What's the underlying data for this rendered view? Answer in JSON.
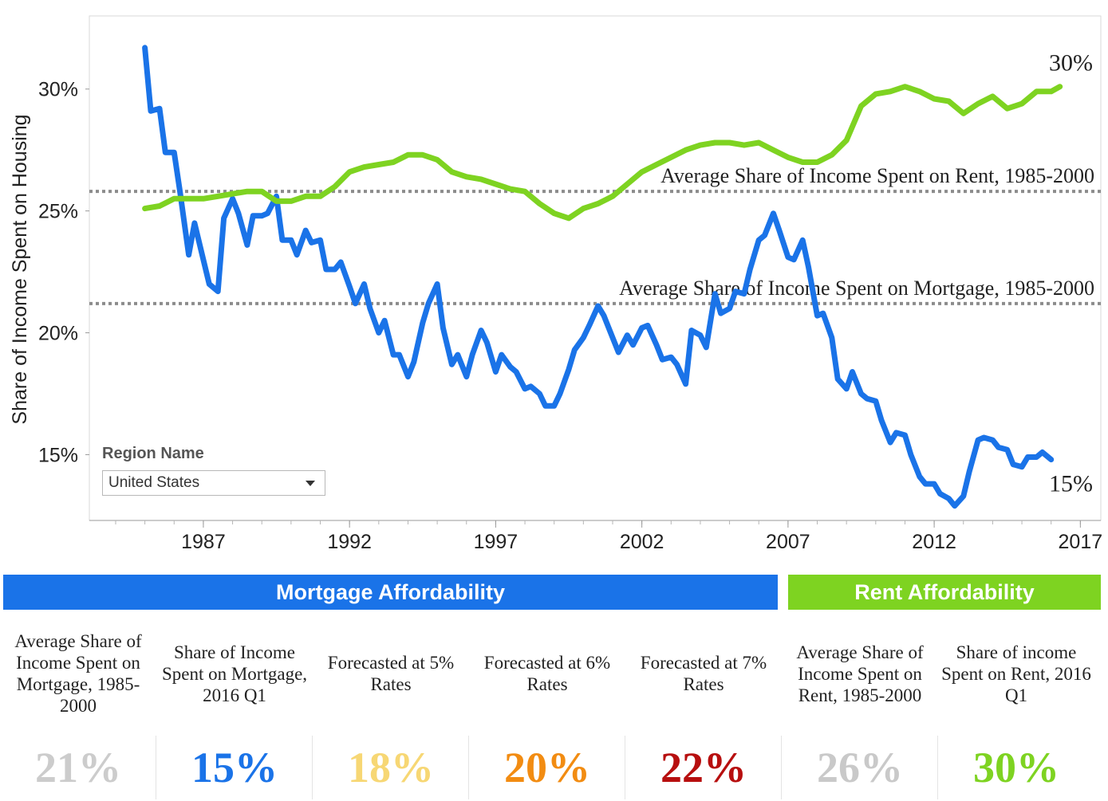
{
  "chart_data": {
    "type": "line",
    "ylabel": "Share of Income Spent on Housing",
    "xlabel": "",
    "xlim": [
      1983.1,
      2017.7
    ],
    "ylim": [
      12.3,
      33.0
    ],
    "x_ticks": [
      {
        "value": 1987,
        "label": "1987"
      },
      {
        "value": 1992,
        "label": "1992"
      },
      {
        "value": 1997,
        "label": "1997"
      },
      {
        "value": 2002,
        "label": "2002"
      },
      {
        "value": 2007,
        "label": "2007"
      },
      {
        "value": 2012,
        "label": "2012"
      },
      {
        "value": 2017,
        "label": "2017"
      }
    ],
    "y_ticks": [
      {
        "value": 15,
        "label": "15%"
      },
      {
        "value": 20,
        "label": "20%"
      },
      {
        "value": 25,
        "label": "25%"
      },
      {
        "value": 30,
        "label": "30%"
      }
    ],
    "reference_lines": [
      {
        "value": 25.8,
        "label": "Average Share of Income Spent on Rent, 1985-2000"
      },
      {
        "value": 21.2,
        "label": "Average Share of Income Spent on Mortgage, 1985-2000"
      }
    ],
    "series": [
      {
        "name": "Mortgage",
        "color": "#1a73e8",
        "end_label": "15%",
        "points": [
          [
            1985.0,
            31.7
          ],
          [
            1985.2,
            29.1
          ],
          [
            1985.5,
            29.2
          ],
          [
            1985.7,
            27.4
          ],
          [
            1986.0,
            27.4
          ],
          [
            1986.2,
            25.8
          ],
          [
            1986.5,
            23.2
          ],
          [
            1986.7,
            24.5
          ],
          [
            1987.0,
            23.0
          ],
          [
            1987.2,
            22.0
          ],
          [
            1987.5,
            21.7
          ],
          [
            1987.7,
            24.7
          ],
          [
            1988.0,
            25.5
          ],
          [
            1988.2,
            24.9
          ],
          [
            1988.5,
            23.6
          ],
          [
            1988.7,
            24.8
          ],
          [
            1989.0,
            24.8
          ],
          [
            1989.2,
            24.9
          ],
          [
            1989.5,
            25.6
          ],
          [
            1989.7,
            23.8
          ],
          [
            1990.0,
            23.8
          ],
          [
            1990.2,
            23.2
          ],
          [
            1990.5,
            24.2
          ],
          [
            1990.7,
            23.7
          ],
          [
            1991.0,
            23.8
          ],
          [
            1991.2,
            22.6
          ],
          [
            1991.5,
            22.6
          ],
          [
            1991.7,
            22.9
          ],
          [
            1992.0,
            21.9
          ],
          [
            1992.2,
            21.2
          ],
          [
            1992.5,
            22.0
          ],
          [
            1992.7,
            21.0
          ],
          [
            1993.0,
            20.0
          ],
          [
            1993.2,
            20.5
          ],
          [
            1993.5,
            19.1
          ],
          [
            1993.7,
            19.1
          ],
          [
            1994.0,
            18.2
          ],
          [
            1994.2,
            18.8
          ],
          [
            1994.5,
            20.4
          ],
          [
            1994.7,
            21.2
          ],
          [
            1995.0,
            22.0
          ],
          [
            1995.2,
            20.2
          ],
          [
            1995.5,
            18.7
          ],
          [
            1995.7,
            19.1
          ],
          [
            1996.0,
            18.2
          ],
          [
            1996.2,
            19.1
          ],
          [
            1996.5,
            20.1
          ],
          [
            1996.7,
            19.6
          ],
          [
            1997.0,
            18.4
          ],
          [
            1997.2,
            19.1
          ],
          [
            1997.5,
            18.6
          ],
          [
            1997.7,
            18.4
          ],
          [
            1998.0,
            17.7
          ],
          [
            1998.2,
            17.8
          ],
          [
            1998.5,
            17.5
          ],
          [
            1998.7,
            17.0
          ],
          [
            1999.0,
            17.0
          ],
          [
            1999.2,
            17.5
          ],
          [
            1999.5,
            18.5
          ],
          [
            1999.7,
            19.3
          ],
          [
            2000.0,
            19.8
          ],
          [
            2000.2,
            20.3
          ],
          [
            2000.5,
            21.1
          ],
          [
            2000.7,
            20.7
          ],
          [
            2001.0,
            19.8
          ],
          [
            2001.2,
            19.2
          ],
          [
            2001.5,
            19.9
          ],
          [
            2001.7,
            19.5
          ],
          [
            2002.0,
            20.2
          ],
          [
            2002.2,
            20.3
          ],
          [
            2002.5,
            19.5
          ],
          [
            2002.7,
            18.9
          ],
          [
            2003.0,
            19.0
          ],
          [
            2003.2,
            18.7
          ],
          [
            2003.5,
            17.9
          ],
          [
            2003.7,
            20.1
          ],
          [
            2004.0,
            19.9
          ],
          [
            2004.2,
            19.4
          ],
          [
            2004.5,
            21.6
          ],
          [
            2004.7,
            20.8
          ],
          [
            2005.0,
            21.0
          ],
          [
            2005.2,
            21.7
          ],
          [
            2005.5,
            21.6
          ],
          [
            2005.7,
            22.6
          ],
          [
            2006.0,
            23.8
          ],
          [
            2006.2,
            24.0
          ],
          [
            2006.5,
            24.9
          ],
          [
            2006.7,
            24.2
          ],
          [
            2007.0,
            23.1
          ],
          [
            2007.2,
            23.0
          ],
          [
            2007.5,
            23.8
          ],
          [
            2007.7,
            22.7
          ],
          [
            2008.0,
            20.7
          ],
          [
            2008.2,
            20.8
          ],
          [
            2008.5,
            19.8
          ],
          [
            2008.7,
            18.1
          ],
          [
            2009.0,
            17.7
          ],
          [
            2009.2,
            18.4
          ],
          [
            2009.5,
            17.5
          ],
          [
            2009.7,
            17.3
          ],
          [
            2010.0,
            17.2
          ],
          [
            2010.2,
            16.4
          ],
          [
            2010.5,
            15.5
          ],
          [
            2010.7,
            15.9
          ],
          [
            2011.0,
            15.8
          ],
          [
            2011.2,
            15.0
          ],
          [
            2011.5,
            14.1
          ],
          [
            2011.7,
            13.8
          ],
          [
            2012.0,
            13.8
          ],
          [
            2012.2,
            13.4
          ],
          [
            2012.5,
            13.2
          ],
          [
            2012.7,
            12.9
          ],
          [
            2013.0,
            13.3
          ],
          [
            2013.2,
            14.3
          ],
          [
            2013.5,
            15.6
          ],
          [
            2013.7,
            15.7
          ],
          [
            2014.0,
            15.6
          ],
          [
            2014.2,
            15.3
          ],
          [
            2014.5,
            15.2
          ],
          [
            2014.7,
            14.6
          ],
          [
            2015.0,
            14.5
          ],
          [
            2015.2,
            14.9
          ],
          [
            2015.5,
            14.9
          ],
          [
            2015.7,
            15.1
          ],
          [
            2016.0,
            14.8
          ]
        ]
      },
      {
        "name": "Rent",
        "color": "#7ed321",
        "end_label": "30%",
        "points": [
          [
            1985.0,
            25.1
          ],
          [
            1985.5,
            25.2
          ],
          [
            1986.0,
            25.5
          ],
          [
            1986.5,
            25.5
          ],
          [
            1987.0,
            25.5
          ],
          [
            1987.5,
            25.6
          ],
          [
            1988.0,
            25.7
          ],
          [
            1988.5,
            25.8
          ],
          [
            1989.0,
            25.8
          ],
          [
            1989.5,
            25.4
          ],
          [
            1990.0,
            25.4
          ],
          [
            1990.5,
            25.6
          ],
          [
            1991.0,
            25.6
          ],
          [
            1991.5,
            26.0
          ],
          [
            1992.0,
            26.6
          ],
          [
            1992.5,
            26.8
          ],
          [
            1993.0,
            26.9
          ],
          [
            1993.5,
            27.0
          ],
          [
            1994.0,
            27.3
          ],
          [
            1994.5,
            27.3
          ],
          [
            1995.0,
            27.1
          ],
          [
            1995.5,
            26.6
          ],
          [
            1996.0,
            26.4
          ],
          [
            1996.5,
            26.3
          ],
          [
            1997.0,
            26.1
          ],
          [
            1997.5,
            25.9
          ],
          [
            1998.0,
            25.8
          ],
          [
            1998.5,
            25.3
          ],
          [
            1999.0,
            24.9
          ],
          [
            1999.5,
            24.7
          ],
          [
            2000.0,
            25.1
          ],
          [
            2000.5,
            25.3
          ],
          [
            2001.0,
            25.6
          ],
          [
            2001.5,
            26.1
          ],
          [
            2002.0,
            26.6
          ],
          [
            2002.5,
            26.9
          ],
          [
            2003.0,
            27.2
          ],
          [
            2003.5,
            27.5
          ],
          [
            2004.0,
            27.7
          ],
          [
            2004.5,
            27.8
          ],
          [
            2005.0,
            27.8
          ],
          [
            2005.5,
            27.7
          ],
          [
            2006.0,
            27.8
          ],
          [
            2006.5,
            27.5
          ],
          [
            2007.0,
            27.2
          ],
          [
            2007.5,
            27.0
          ],
          [
            2008.0,
            27.0
          ],
          [
            2008.5,
            27.3
          ],
          [
            2009.0,
            27.9
          ],
          [
            2009.5,
            29.3
          ],
          [
            2010.0,
            29.8
          ],
          [
            2010.5,
            29.9
          ],
          [
            2011.0,
            30.1
          ],
          [
            2011.5,
            29.9
          ],
          [
            2012.0,
            29.6
          ],
          [
            2012.5,
            29.5
          ],
          [
            2013.0,
            29.0
          ],
          [
            2013.5,
            29.4
          ],
          [
            2014.0,
            29.7
          ],
          [
            2014.5,
            29.2
          ],
          [
            2015.0,
            29.4
          ],
          [
            2015.5,
            29.9
          ],
          [
            2016.0,
            29.9
          ],
          [
            2016.3,
            30.1
          ]
        ]
      }
    ]
  },
  "region_filter": {
    "title": "Region Name",
    "selected": "United States"
  },
  "banners": {
    "mortgage": "Mortgage Affordability",
    "rent": "Rent Affordability"
  },
  "kpis": [
    {
      "label": "Average Share of Income Spent on Mortgage, 1985-2000",
      "value": "21%",
      "color": "#cccccc"
    },
    {
      "label": "Share of Income Spent on Mortgage, 2016 Q1",
      "value": "15%",
      "color": "#1a73e8"
    },
    {
      "label": "Forecasted at 5% Rates",
      "value": "18%",
      "color": "#f7d774"
    },
    {
      "label": "Forecasted at 6% Rates",
      "value": "20%",
      "color": "#f28c12"
    },
    {
      "label": "Forecasted at 7% Rates",
      "value": "22%",
      "color": "#b70f0f"
    },
    {
      "label": "Average Share of Income Spent on Rent, 1985-2000",
      "value": "26%",
      "color": "#c9c9c9"
    },
    {
      "label": "Share of income Spent on Rent, 2016 Q1",
      "value": "30%",
      "color": "#7ed321"
    }
  ]
}
